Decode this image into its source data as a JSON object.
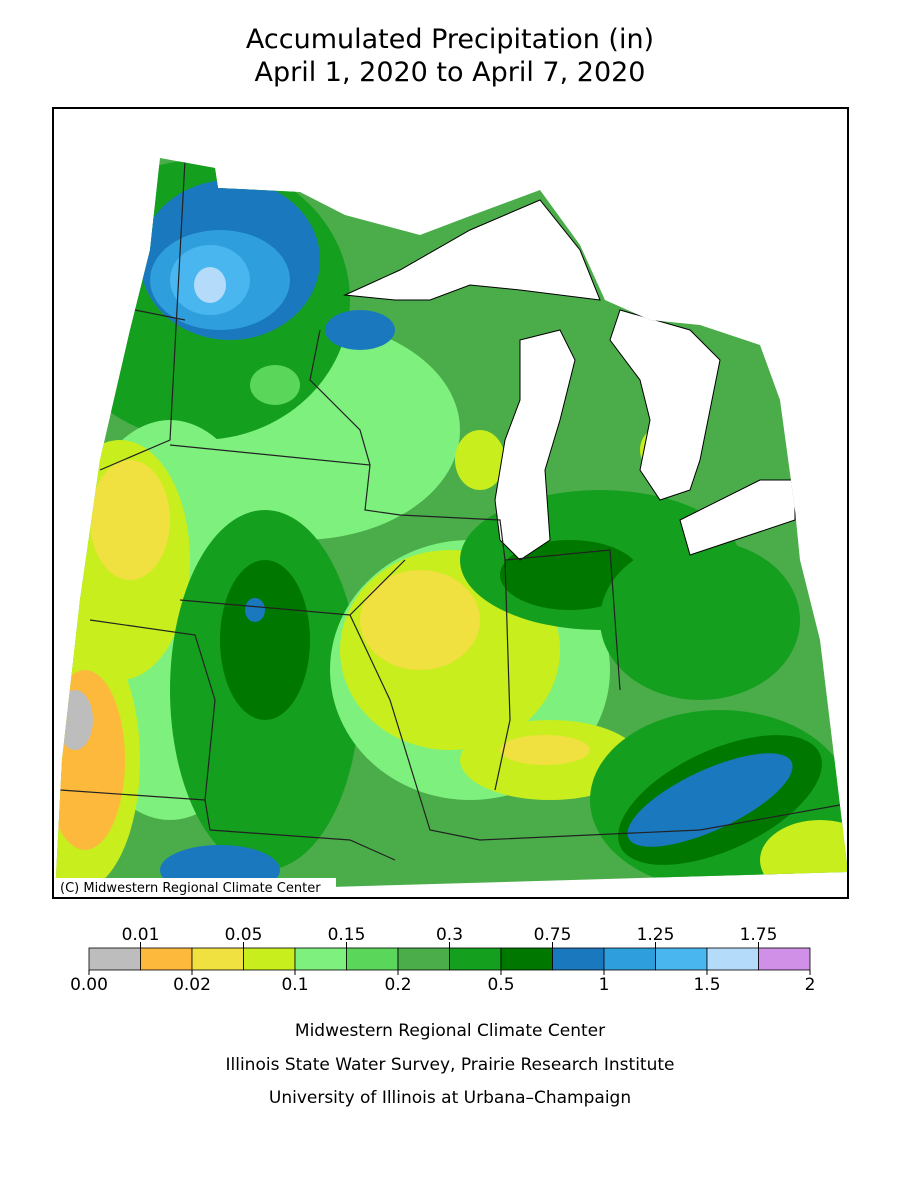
{
  "title": [
    "Accumulated Precipitation (in)",
    "April 1, 2020 to April 7, 2020"
  ],
  "copyright": "(C) Midwestern Regional Climate Center",
  "legend": {
    "labels": [
      "0.00",
      "0.01",
      "0.02",
      "0.05",
      "0.1",
      "0.15",
      "0.2",
      "0.3",
      "0.5",
      "0.75",
      "1",
      "1.25",
      "1.5",
      "1.75",
      "2"
    ],
    "colors": [
      "#bdbdbd",
      "#fdb93b",
      "#f0e040",
      "#c8ee1e",
      "#7ef07e",
      "#5ad75a",
      "#4aad4a",
      "#159f1e",
      "#007800",
      "#1a78be",
      "#2e9fdc",
      "#4ab6f0",
      "#b4dcfa",
      "#d090e8"
    ]
  },
  "credits": [
    "Midwestern Regional Climate Center",
    "Illinois State Water Survey, Prairie Research Institute",
    "University of Illinois at Urbana–Champaign"
  ]
}
